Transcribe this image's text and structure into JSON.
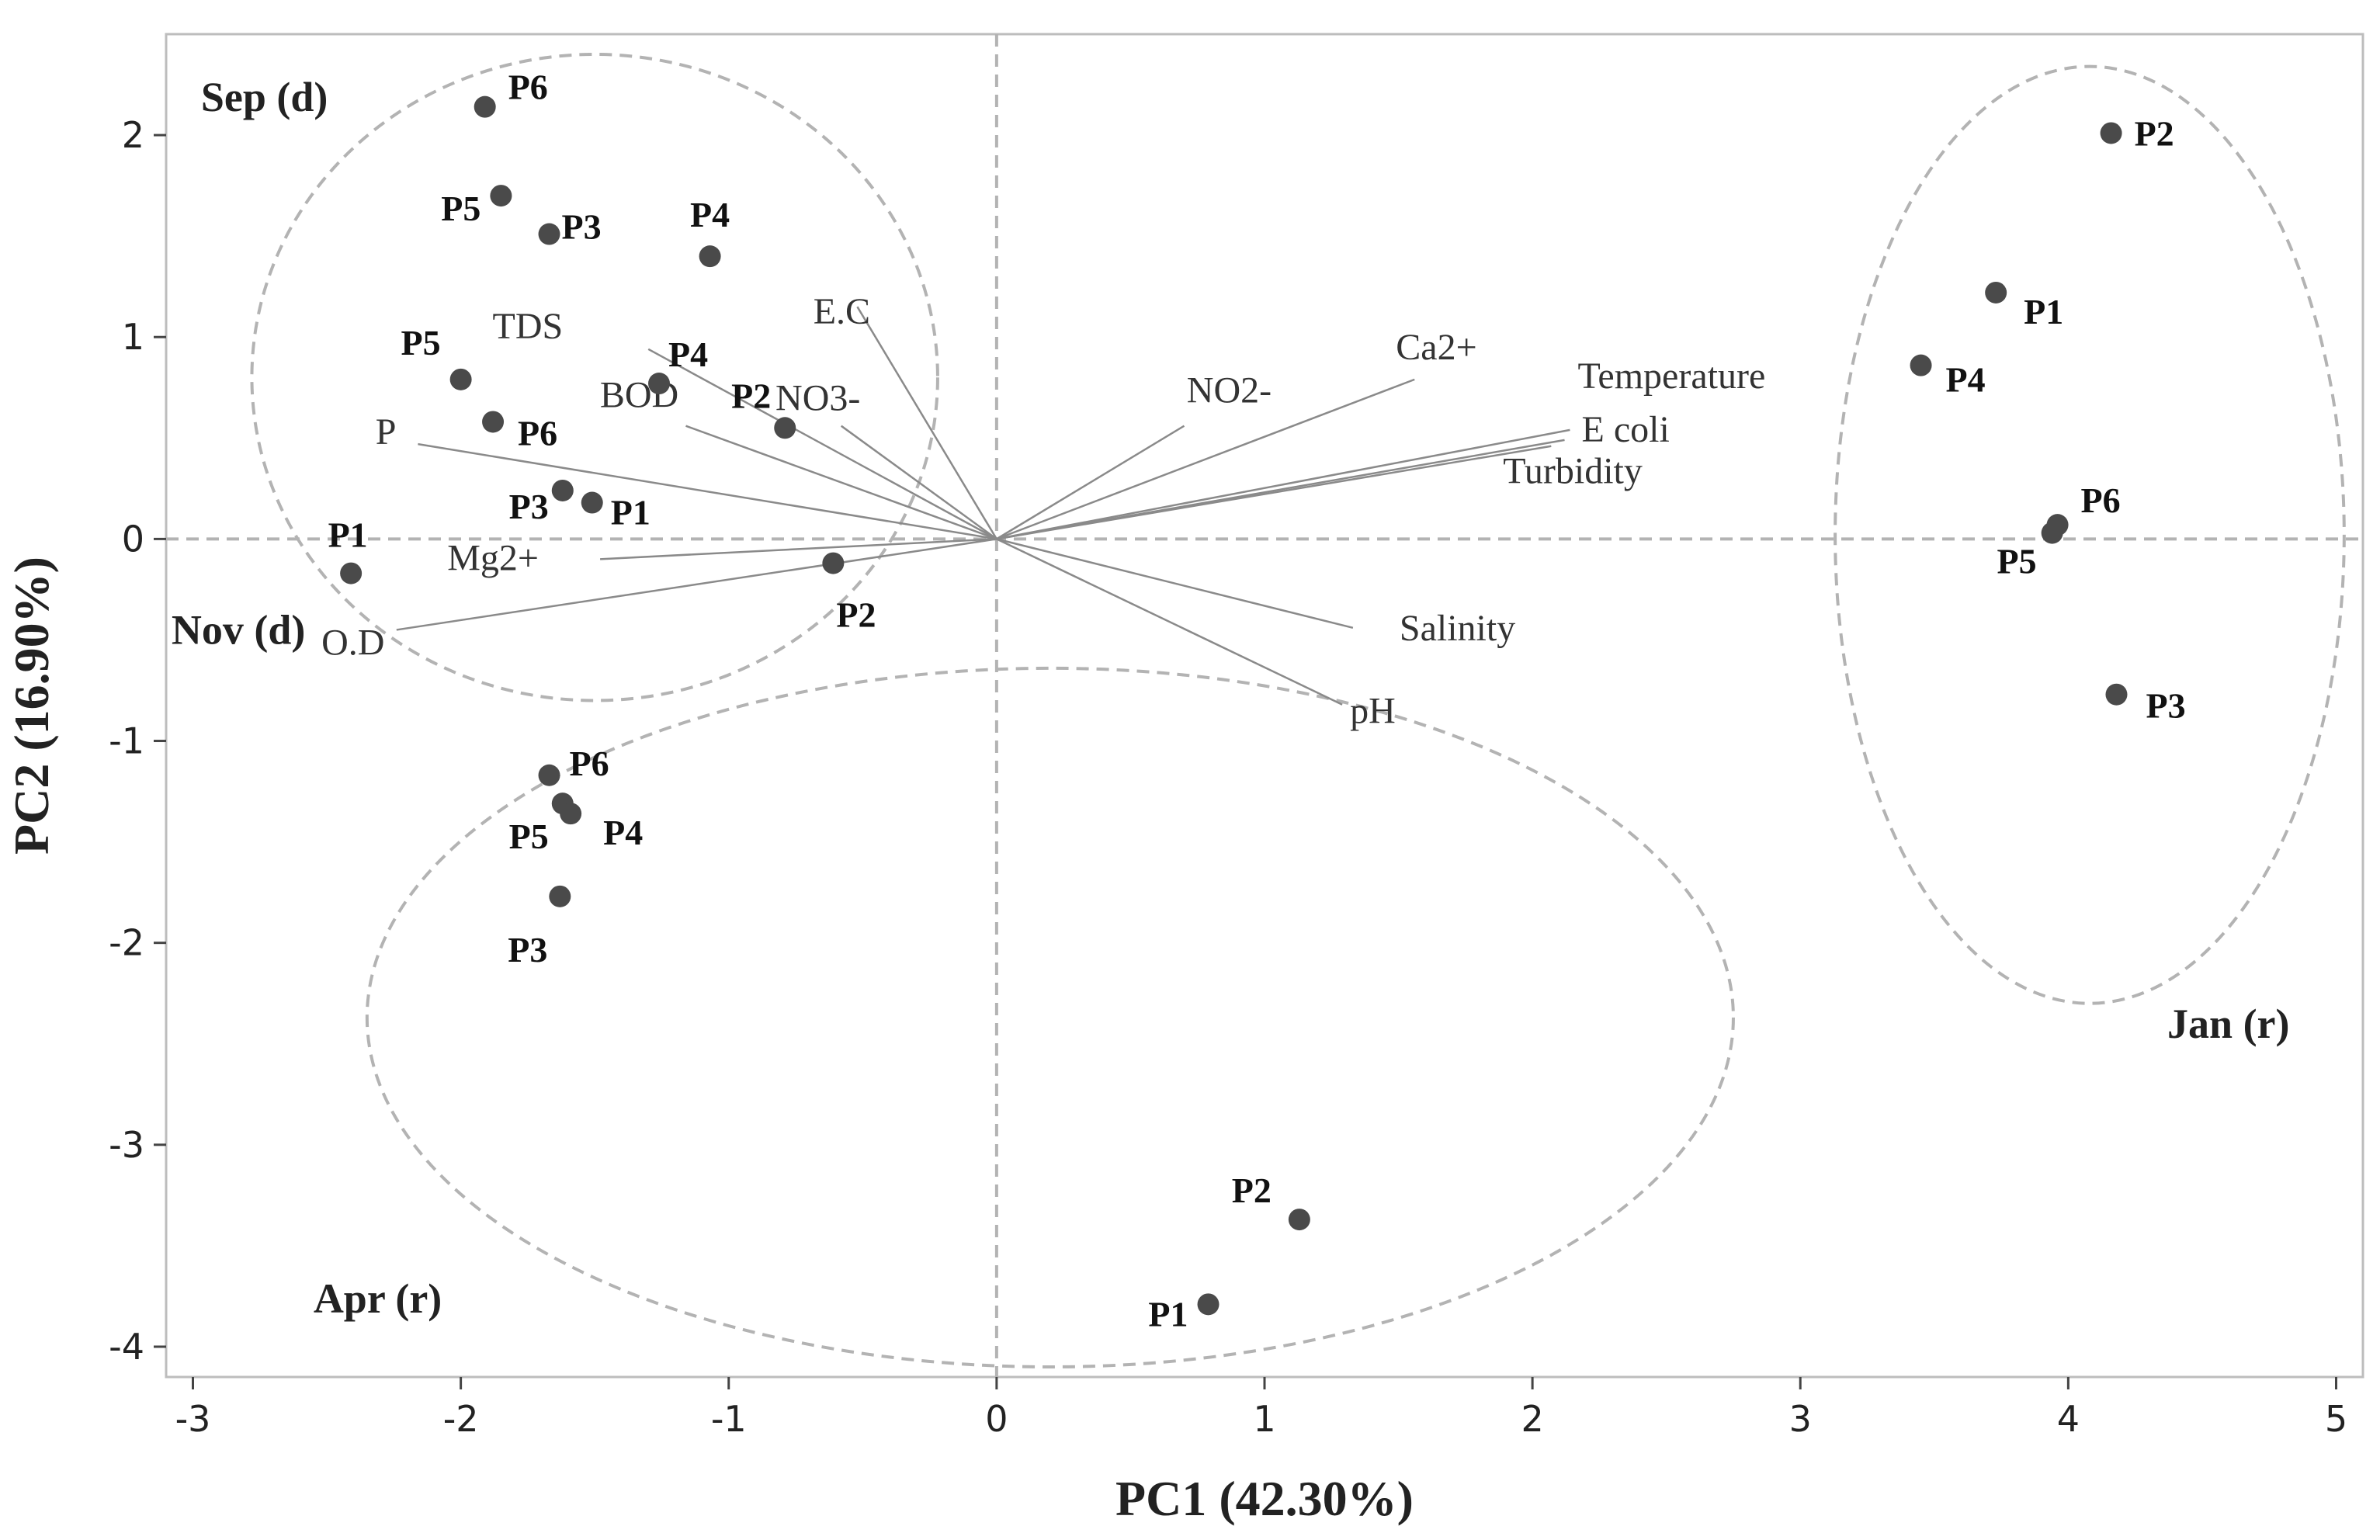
{
  "chart_data": {
    "type": "scatter",
    "subtype": "pca-biplot",
    "xlabel": "PC1 (42.30%)",
    "ylabel": "PC2 (16.90%)",
    "xlim": [
      -3.1,
      5.1
    ],
    "ylim": [
      -4.15,
      2.5
    ],
    "xticks": [
      -3,
      -2,
      -1,
      0,
      1,
      2,
      3,
      4,
      5
    ],
    "yticks": [
      -4,
      -3,
      -2,
      -1,
      0,
      1,
      2
    ],
    "points": [
      {
        "label": "P6",
        "x": -1.91,
        "y": 2.14,
        "group": "Sep (d)"
      },
      {
        "label": "P5",
        "x": -1.85,
        "y": 1.7,
        "group": "Sep (d)"
      },
      {
        "label": "P3",
        "x": -1.67,
        "y": 1.51,
        "group": "Sep (d)"
      },
      {
        "label": "P4",
        "x": -1.07,
        "y": 1.4,
        "group": "Sep (d)"
      },
      {
        "label": "P5",
        "x": -2.0,
        "y": 0.79,
        "group": "Nov (d)"
      },
      {
        "label": "P4",
        "x": -1.26,
        "y": 0.77,
        "group": "Sep (d)"
      },
      {
        "label": "P2",
        "x": -0.79,
        "y": 0.55,
        "group": "Sep (d)"
      },
      {
        "label": "P6",
        "x": -1.88,
        "y": 0.58,
        "group": "Nov (d)"
      },
      {
        "label": "P3",
        "x": -1.62,
        "y": 0.24,
        "group": "Nov (d)"
      },
      {
        "label": "P1",
        "x": -1.51,
        "y": 0.18,
        "group": "Sep (d)"
      },
      {
        "label": "P1",
        "x": -2.41,
        "y": -0.17,
        "group": "Nov (d)"
      },
      {
        "label": "P2",
        "x": -0.61,
        "y": -0.12,
        "group": "Nov (d)"
      },
      {
        "label": "P6",
        "x": -1.67,
        "y": -1.17,
        "group": "Apr (r)"
      },
      {
        "label": "P5",
        "x": -1.62,
        "y": -1.31,
        "group": "Apr (r)"
      },
      {
        "label": "P4",
        "x": -1.59,
        "y": -1.36,
        "group": "Apr (r)"
      },
      {
        "label": "P3",
        "x": -1.63,
        "y": -1.77,
        "group": "Apr (r)"
      },
      {
        "label": "P2",
        "x": 1.13,
        "y": -3.37,
        "group": "Apr (r)"
      },
      {
        "label": "P1",
        "x": 0.79,
        "y": -3.79,
        "group": "Apr (r)"
      },
      {
        "label": "P2",
        "x": 4.16,
        "y": 2.01,
        "group": "Jan (r)"
      },
      {
        "label": "P1",
        "x": 3.73,
        "y": 1.22,
        "group": "Jan (r)"
      },
      {
        "label": "P4",
        "x": 3.45,
        "y": 0.86,
        "group": "Jan (r)"
      },
      {
        "label": "P6",
        "x": 3.96,
        "y": 0.07,
        "group": "Jan (r)"
      },
      {
        "label": "P5",
        "x": 3.94,
        "y": 0.03,
        "group": "Jan (r)"
      },
      {
        "label": "P3",
        "x": 4.18,
        "y": -0.77,
        "group": "Jan (r)"
      }
    ],
    "loadings": [
      {
        "name": "E.C",
        "x": -0.52,
        "y": 1.15
      },
      {
        "name": "TDS",
        "x": -1.3,
        "y": 0.94
      },
      {
        "name": "NO3-",
        "x": -0.58,
        "y": 0.56
      },
      {
        "name": "BOD",
        "x": -1.16,
        "y": 0.56
      },
      {
        "name": "P",
        "x": -2.16,
        "y": 0.47
      },
      {
        "name": "Mg2+",
        "x": -1.48,
        "y": -0.1
      },
      {
        "name": "O.D",
        "x": -2.24,
        "y": -0.45
      },
      {
        "name": "NO2-",
        "x": 0.7,
        "y": 0.56
      },
      {
        "name": "Ca2+",
        "x": 1.56,
        "y": 0.79
      },
      {
        "name": "Temperature",
        "x": 2.14,
        "y": 0.54
      },
      {
        "name": "E coli",
        "x": 2.12,
        "y": 0.49
      },
      {
        "name": "Turbidity",
        "x": 2.07,
        "y": 0.46
      },
      {
        "name": "Salinity",
        "x": 1.33,
        "y": -0.44
      },
      {
        "name": "pH",
        "x": 1.29,
        "y": -0.82
      }
    ],
    "groups": [
      {
        "name": "Sep (d)",
        "kind": "dry",
        "cx": -1.5,
        "cy": 0.8,
        "rx": 1.28,
        "ry": 1.6
      },
      {
        "name": "Apr (r)",
        "kind": "rain",
        "cx": 0.2,
        "cy": -2.37,
        "rx": 2.55,
        "ry": 1.73
      },
      {
        "name": "Jan (r)",
        "kind": "rain",
        "cx": 4.08,
        "cy": 0.02,
        "rx": 0.95,
        "ry": 2.32
      }
    ],
    "group_labels": [
      {
        "name": "Sep (d)",
        "x": -2.97,
        "y": 2.12
      },
      {
        "name": "Nov (d)",
        "x": -3.08,
        "y": -0.52
      },
      {
        "name": "Apr (r)",
        "x": -2.55,
        "y": -3.83
      },
      {
        "name": "Jan (r)",
        "x": 4.37,
        "y": -2.47
      }
    ],
    "legend": "none",
    "grid": false
  }
}
